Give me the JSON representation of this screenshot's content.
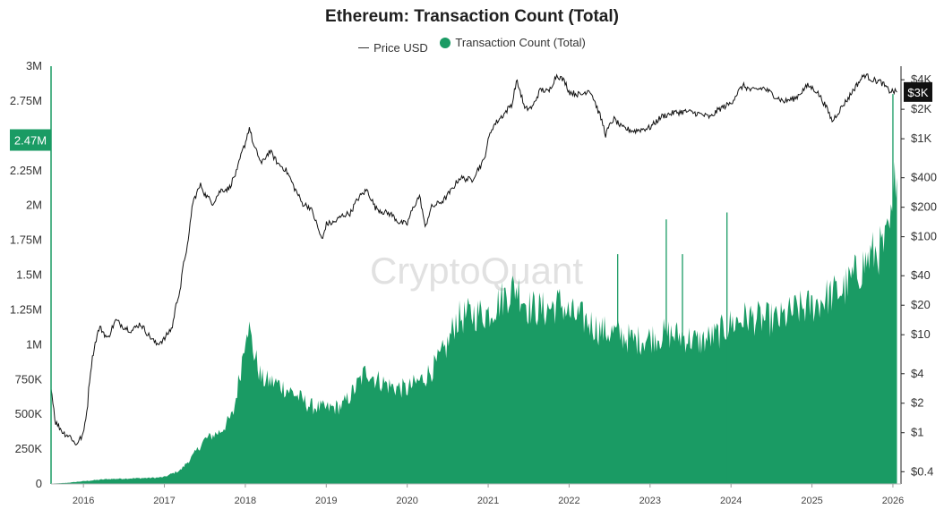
{
  "chart_data": {
    "type": "area",
    "title": "Ethereum: Transaction Count (Total)",
    "legend": [
      {
        "name": "Price USD",
        "marker": "line",
        "color": "#333333"
      },
      {
        "name": "Transaction Count (Total)",
        "marker": "dot",
        "color": "#1a9b64"
      }
    ],
    "legend_position": "top-center",
    "watermark": "CryptoQuant",
    "x_ticks": [
      "2016",
      "2017",
      "2018",
      "2019",
      "2020",
      "2021",
      "2022",
      "2023",
      "2024",
      "2025",
      "2026"
    ],
    "x_range": [
      2015.6,
      2026.1
    ],
    "left_axis": {
      "ylim": [
        0,
        3000000
      ],
      "tick_values": [
        0,
        250000,
        500000,
        750000,
        1000000,
        1250000,
        1500000,
        1750000,
        2000000,
        2250000,
        2500000,
        2750000,
        3000000
      ],
      "tick_labels": [
        "0",
        "250K",
        "500K",
        "750K",
        "1M",
        "1.25M",
        "1.5M",
        "1.75M",
        "2M",
        "2.25M",
        "2.5M",
        "2.75M",
        "3M"
      ],
      "current_value_label": "2.47M",
      "current_value": 2470000
    },
    "right_axis": {
      "scale": "log",
      "ylim": [
        0.3,
        5500
      ],
      "tick_values": [
        0.4,
        1,
        2,
        4,
        10,
        20,
        40,
        100,
        200,
        400,
        1000,
        2000,
        4000
      ],
      "tick_labels": [
        "$0.4",
        "$1",
        "$2",
        "$4",
        "$10",
        "$20",
        "$40",
        "$100",
        "$200",
        "$400",
        "$1K",
        "$2K",
        "$4K"
      ],
      "current_value_label": "$3K",
      "current_value": 3000
    },
    "colors": {
      "transactions": "#1a9b64",
      "price": "#111111",
      "left_axis_line": "#1a9b64"
    },
    "series": [
      {
        "name": "Transaction Count (Total)",
        "axis": "left",
        "points": [
          [
            2015.6,
            2000
          ],
          [
            2015.8,
            8000
          ],
          [
            2016.0,
            20000
          ],
          [
            2016.3,
            35000
          ],
          [
            2016.6,
            40000
          ],
          [
            2016.9,
            45000
          ],
          [
            2017.0,
            50000
          ],
          [
            2017.2,
            100000
          ],
          [
            2017.35,
            200000
          ],
          [
            2017.5,
            320000
          ],
          [
            2017.7,
            380000
          ],
          [
            2017.85,
            500000
          ],
          [
            2017.95,
            850000
          ],
          [
            2018.02,
            1180000
          ],
          [
            2018.1,
            960000
          ],
          [
            2018.2,
            750000
          ],
          [
            2018.4,
            720000
          ],
          [
            2018.6,
            650000
          ],
          [
            2018.8,
            560000
          ],
          [
            2019.0,
            540000
          ],
          [
            2019.2,
            560000
          ],
          [
            2019.35,
            680000
          ],
          [
            2019.5,
            820000
          ],
          [
            2019.6,
            760000
          ],
          [
            2019.8,
            700000
          ],
          [
            2020.0,
            680000
          ],
          [
            2020.2,
            760000
          ],
          [
            2020.35,
            850000
          ],
          [
            2020.5,
            1000000
          ],
          [
            2020.6,
            1180000
          ],
          [
            2020.8,
            1220000
          ],
          [
            2021.0,
            1230000
          ],
          [
            2021.2,
            1350000
          ],
          [
            2021.35,
            1420000
          ],
          [
            2021.5,
            1270000
          ],
          [
            2021.7,
            1250000
          ],
          [
            2021.9,
            1300000
          ],
          [
            2022.0,
            1220000
          ],
          [
            2022.2,
            1180000
          ],
          [
            2022.4,
            1100000
          ],
          [
            2022.6,
            1080000
          ],
          [
            2022.8,
            1030000
          ],
          [
            2023.0,
            1050000
          ],
          [
            2023.2,
            1080000
          ],
          [
            2023.4,
            1060000
          ],
          [
            2023.6,
            1020000
          ],
          [
            2023.8,
            1060000
          ],
          [
            2024.0,
            1150000
          ],
          [
            2024.2,
            1200000
          ],
          [
            2024.4,
            1180000
          ],
          [
            2024.6,
            1180000
          ],
          [
            2024.8,
            1250000
          ],
          [
            2025.0,
            1280000
          ],
          [
            2025.2,
            1350000
          ],
          [
            2025.4,
            1400000
          ],
          [
            2025.6,
            1550000
          ],
          [
            2025.75,
            1650000
          ],
          [
            2025.9,
            1700000
          ],
          [
            2026.0,
            1900000
          ],
          [
            2026.05,
            2470000
          ]
        ],
        "spikes": [
          [
            2022.6,
            1650000
          ],
          [
            2023.2,
            1900000
          ],
          [
            2023.4,
            1650000
          ],
          [
            2023.95,
            1950000
          ],
          [
            2026.0,
            2800000
          ]
        ]
      },
      {
        "name": "Price USD",
        "axis": "right",
        "points": [
          [
            2015.6,
            2.8
          ],
          [
            2015.65,
            1.3
          ],
          [
            2015.75,
            1.0
          ],
          [
            2015.85,
            0.9
          ],
          [
            2015.9,
            0.75
          ],
          [
            2016.0,
            0.95
          ],
          [
            2016.05,
            1.8
          ],
          [
            2016.1,
            5
          ],
          [
            2016.2,
            12
          ],
          [
            2016.3,
            9
          ],
          [
            2016.4,
            14
          ],
          [
            2016.5,
            12
          ],
          [
            2016.6,
            11
          ],
          [
            2016.7,
            13
          ],
          [
            2016.8,
            10
          ],
          [
            2016.9,
            8
          ],
          [
            2017.0,
            9
          ],
          [
            2017.1,
            12
          ],
          [
            2017.2,
            30
          ],
          [
            2017.3,
            90
          ],
          [
            2017.35,
            220
          ],
          [
            2017.45,
            340
          ],
          [
            2017.5,
            270
          ],
          [
            2017.6,
            220
          ],
          [
            2017.7,
            300
          ],
          [
            2017.8,
            310
          ],
          [
            2017.9,
            470
          ],
          [
            2018.0,
            900
          ],
          [
            2018.05,
            1300
          ],
          [
            2018.1,
            850
          ],
          [
            2018.2,
            550
          ],
          [
            2018.3,
            750
          ],
          [
            2018.4,
            560
          ],
          [
            2018.5,
            480
          ],
          [
            2018.6,
            320
          ],
          [
            2018.7,
            220
          ],
          [
            2018.8,
            200
          ],
          [
            2018.9,
            120
          ],
          [
            2018.95,
            90
          ],
          [
            2019.0,
            135
          ],
          [
            2019.1,
            140
          ],
          [
            2019.2,
            165
          ],
          [
            2019.3,
            175
          ],
          [
            2019.4,
            250
          ],
          [
            2019.5,
            300
          ],
          [
            2019.6,
            200
          ],
          [
            2019.7,
            180
          ],
          [
            2019.8,
            170
          ],
          [
            2019.9,
            140
          ],
          [
            2020.0,
            135
          ],
          [
            2020.15,
            260
          ],
          [
            2020.22,
            120
          ],
          [
            2020.3,
            200
          ],
          [
            2020.45,
            235
          ],
          [
            2020.55,
            300
          ],
          [
            2020.65,
            400
          ],
          [
            2020.8,
            380
          ],
          [
            2020.95,
            600
          ],
          [
            2021.05,
            1300
          ],
          [
            2021.2,
            1800
          ],
          [
            2021.3,
            2300
          ],
          [
            2021.35,
            3900
          ],
          [
            2021.45,
            2000
          ],
          [
            2021.55,
            2100
          ],
          [
            2021.65,
            3200
          ],
          [
            2021.75,
            3000
          ],
          [
            2021.85,
            4500
          ],
          [
            2021.95,
            3800
          ],
          [
            2022.0,
            3000
          ],
          [
            2022.15,
            2800
          ],
          [
            2022.25,
            3200
          ],
          [
            2022.35,
            2000
          ],
          [
            2022.45,
            1100
          ],
          [
            2022.55,
            1600
          ],
          [
            2022.65,
            1300
          ],
          [
            2022.8,
            1200
          ],
          [
            2022.9,
            1250
          ],
          [
            2023.0,
            1300
          ],
          [
            2023.15,
            1700
          ],
          [
            2023.3,
            1850
          ],
          [
            2023.45,
            1900
          ],
          [
            2023.6,
            1800
          ],
          [
            2023.75,
            1650
          ],
          [
            2023.85,
            2000
          ],
          [
            2024.0,
            2300
          ],
          [
            2024.15,
            3500
          ],
          [
            2024.25,
            3100
          ],
          [
            2024.4,
            3300
          ],
          [
            2024.55,
            2700
          ],
          [
            2024.65,
            2400
          ],
          [
            2024.8,
            2600
          ],
          [
            2024.95,
            3500
          ],
          [
            2025.05,
            3100
          ],
          [
            2025.15,
            2300
          ],
          [
            2025.25,
            1500
          ],
          [
            2025.35,
            2000
          ],
          [
            2025.45,
            2600
          ],
          [
            2025.55,
            3500
          ],
          [
            2025.65,
            4500
          ],
          [
            2025.75,
            4000
          ],
          [
            2025.85,
            3800
          ],
          [
            2025.95,
            3100
          ],
          [
            2026.05,
            3000
          ]
        ]
      }
    ]
  }
}
